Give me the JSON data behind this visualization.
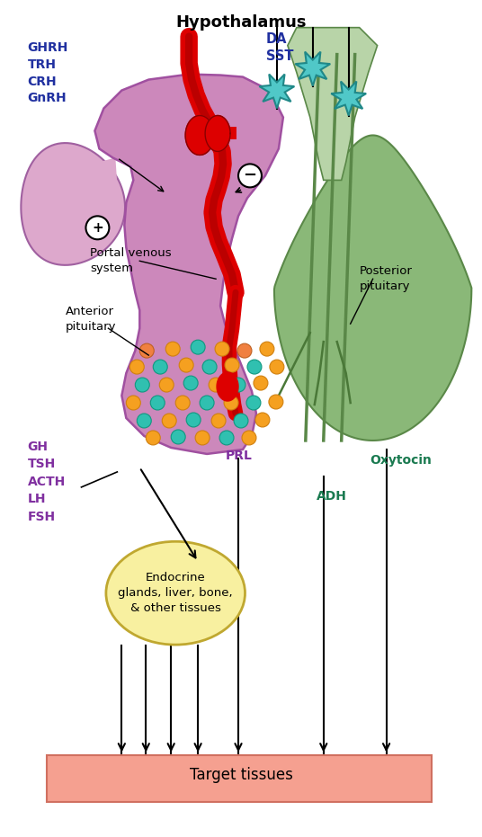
{
  "title": "Hypothalamus",
  "title_fontsize": 13,
  "title_fontweight": "bold",
  "bg_color": "#ffffff",
  "hyp_body_color": "#cc88bb",
  "hyp_body_edge": "#b060a0",
  "hyp_left_lobe_color": "#dda8cc",
  "hyp_left_lobe_edge": "#c070a8",
  "hyp_stalk_color": "#c878b0",
  "ant_pit_color": "#c878b8",
  "ant_pit_edge": "#a050a0",
  "post_pit_color_top": "#a0c890",
  "post_pit_color_bot": "#6a9858",
  "post_pit_edge": "#507840",
  "portal_red": "#dd0000",
  "portal_dark": "#aa0000",
  "star_fill": "#50c8c8",
  "star_edge": "#208888",
  "dot_yellow": "#f5a020",
  "dot_yellow_edge": "#d08010",
  "dot_teal": "#30c0b0",
  "dot_teal_edge": "#109880",
  "dot_orange": "#f08040",
  "dot_orange_edge": "#c06020",
  "arrow_color": "#111111",
  "target_box_color": "#f5a090",
  "target_box_edge": "#d07060",
  "endocrine_color": "#f8f0a0",
  "endocrine_edge": "#c0a830",
  "plus_circle_edge": "#000000",
  "minus_circle_edge": "#000000",
  "blue_label": "#2030a0",
  "purple_label": "#8030a0",
  "green_label": "#1a7a50",
  "black_label": "#000000",
  "labels": {
    "title": "Hypothalamus",
    "GHRH_group": "GHRH\nTRH\nCRH\nGnRH",
    "DA_SST": "DA\nSST",
    "portal": "Portal venous\nsystem",
    "anterior": "Anterior\npituitary",
    "posterior": "Posterior\npituitary",
    "GH_group": "GH\nTSH\nACTH\nLH\nFSH",
    "PRL": "PRL",
    "ADH": "ADH",
    "Oxytocin": "Oxytocin",
    "endocrine": "Endocrine\nglands, liver, bone,\n& other tissues",
    "target": "Target tissues"
  }
}
